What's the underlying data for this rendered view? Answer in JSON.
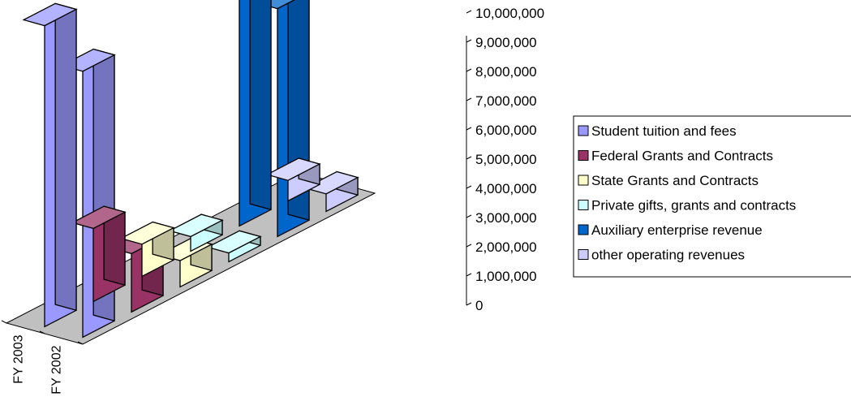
{
  "chart_data": {
    "type": "bar",
    "style": "3d-column",
    "title": "",
    "categories": [
      "FY 2003",
      "FY 2002"
    ],
    "series": [
      {
        "name": "Student tuition and fees",
        "values": [
          10300000,
          9100000
        ],
        "color": "#9999FF"
      },
      {
        "name": "Federal Grants and Contracts",
        "values": [
          2500000,
          2000000
        ],
        "color": "#993366"
      },
      {
        "name": "State Grants and Contracts",
        "values": [
          1100000,
          900000
        ],
        "color": "#FFFFCC"
      },
      {
        "name": "Private gifts, grants and contracts",
        "values": [
          500000,
          300000
        ],
        "color": "#CCFFFF"
      },
      {
        "name": "Auxiliary enterprise revenue",
        "values": [
          8300000,
          7800000
        ],
        "color": "#0066CC"
      },
      {
        "name": "other operating revenues",
        "values": [
          700000,
          600000
        ],
        "color": "#CCCCFF"
      }
    ],
    "yticks": [
      "0",
      "1,000,000",
      "2,000,000",
      "3,000,000",
      "4,000,000",
      "5,000,000",
      "6,000,000",
      "7,000,000",
      "8,000,000",
      "9,000,000",
      "10,000,000"
    ],
    "ylim": [
      0,
      10000000
    ],
    "legend_position": "right",
    "grid": false
  }
}
